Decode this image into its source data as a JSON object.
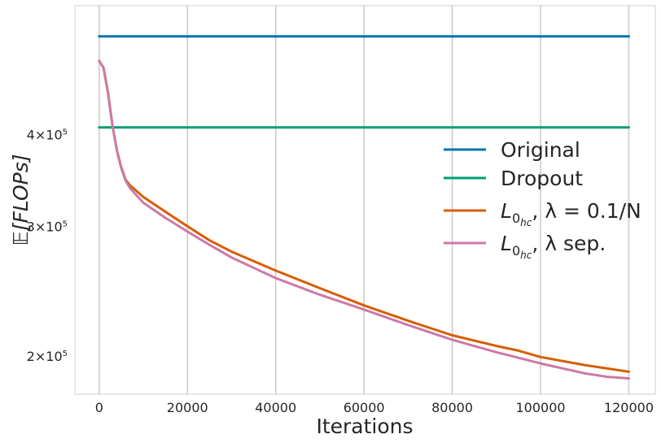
{
  "chart_data": {
    "type": "line",
    "title": "",
    "xlabel": "Iterations",
    "ylabel": "𝔼[FLOPs]",
    "x_ticks": [
      0,
      20000,
      40000,
      60000,
      80000,
      100000,
      120000
    ],
    "x_tick_labels": [
      "0",
      "20000",
      "40000",
      "60000",
      "80000",
      "100000",
      "120000"
    ],
    "y_scale": "log",
    "y_ticks": [
      200000,
      300000,
      400000
    ],
    "y_tick_labels": [
      {
        "mantissa": "2",
        "exponent": "5"
      },
      {
        "mantissa": "3",
        "exponent": "5"
      },
      {
        "mantissa": "4",
        "exponent": "5"
      }
    ],
    "xlim": [
      -5500,
      126000
    ],
    "ylim": [
      178000,
      600000
    ],
    "grid": "vertical",
    "legend_placement": "right",
    "series": [
      {
        "name": "Original",
        "legend_main": "Original",
        "color": "#0072B2",
        "x": [
          0,
          120000
        ],
        "y": [
          545000,
          545000
        ]
      },
      {
        "name": "Dropout",
        "legend_main": "Dropout",
        "color": "#009E73",
        "x": [
          0,
          120000
        ],
        "y": [
          410000,
          410000
        ]
      },
      {
        "name": "L0hc, λ = 0.1/N",
        "legend_main": "L",
        "legend_sub": "0",
        "legend_subsub": "hc",
        "legend_rest": ", λ = 0.1/N",
        "color": "#D55E00",
        "x": [
          0,
          1000,
          2000,
          3000,
          4000,
          5000,
          6000,
          7000,
          10000,
          15000,
          20000,
          25000,
          30000,
          40000,
          50000,
          60000,
          70000,
          80000,
          90000,
          95000,
          100000,
          110000,
          120000
        ],
        "y": [
          505000,
          494000,
          457000,
          413000,
          382000,
          362000,
          348000,
          342000,
          330000,
          315000,
          301000,
          288000,
          278000,
          262000,
          248000,
          235000,
          224000,
          214000,
          207000,
          204000,
          200000,
          195000,
          191000
        ]
      },
      {
        "name": "L0hc, λ sep.",
        "legend_main": "L",
        "legend_sub": "0",
        "legend_subsub": "hc",
        "legend_rest": ", λ sep.",
        "color": "#CC79A7",
        "x": [
          0,
          1000,
          2000,
          3000,
          4000,
          5000,
          6000,
          7000,
          10000,
          15000,
          20000,
          25000,
          30000,
          40000,
          50000,
          60000,
          70000,
          80000,
          90000,
          100000,
          110000,
          115000,
          120000
        ],
        "y": [
          505000,
          494000,
          457000,
          413000,
          382000,
          361000,
          347000,
          339000,
          324000,
          309000,
          296000,
          284000,
          273000,
          256000,
          243000,
          232000,
          221000,
          211000,
          203000,
          196000,
          190000,
          188000,
          187000
        ]
      }
    ]
  }
}
